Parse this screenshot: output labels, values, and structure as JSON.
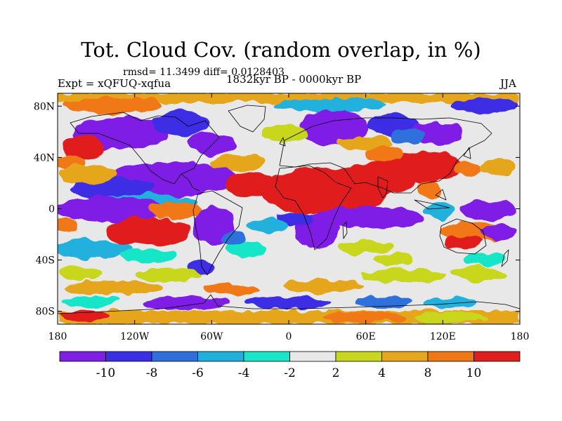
{
  "title": "Tot. Cloud Cov. (random overlap, in %)",
  "stats": "rmsd= 11.3499 diff= 0.0128403",
  "experiment": "Expt = xQFUQ-xqfua",
  "period": "1832kyr BP - 0000kyr BP",
  "season": "JJA",
  "lat_labels": [
    "80N",
    "40N",
    "0",
    "40S",
    "80S"
  ],
  "lat_values": [
    80,
    40,
    0,
    -40,
    -80
  ],
  "lon_labels": [
    "180",
    "120W",
    "60W",
    "0",
    "60E",
    "120E",
    "180"
  ],
  "lon_values": [
    -180,
    -120,
    -60,
    0,
    60,
    120,
    180
  ],
  "colorbar": {
    "labels": [
      "-10",
      "-8",
      "-6",
      "-4",
      "-2",
      "2",
      "4",
      "8",
      "10"
    ],
    "colors": [
      "#7f1fe6",
      "#3c2ee6",
      "#2f6fdc",
      "#21b0dc",
      "#19e6c8",
      "#e8e8e8",
      "#c8d61e",
      "#e6a61e",
      "#f07814",
      "#e01e1e"
    ]
  }
}
